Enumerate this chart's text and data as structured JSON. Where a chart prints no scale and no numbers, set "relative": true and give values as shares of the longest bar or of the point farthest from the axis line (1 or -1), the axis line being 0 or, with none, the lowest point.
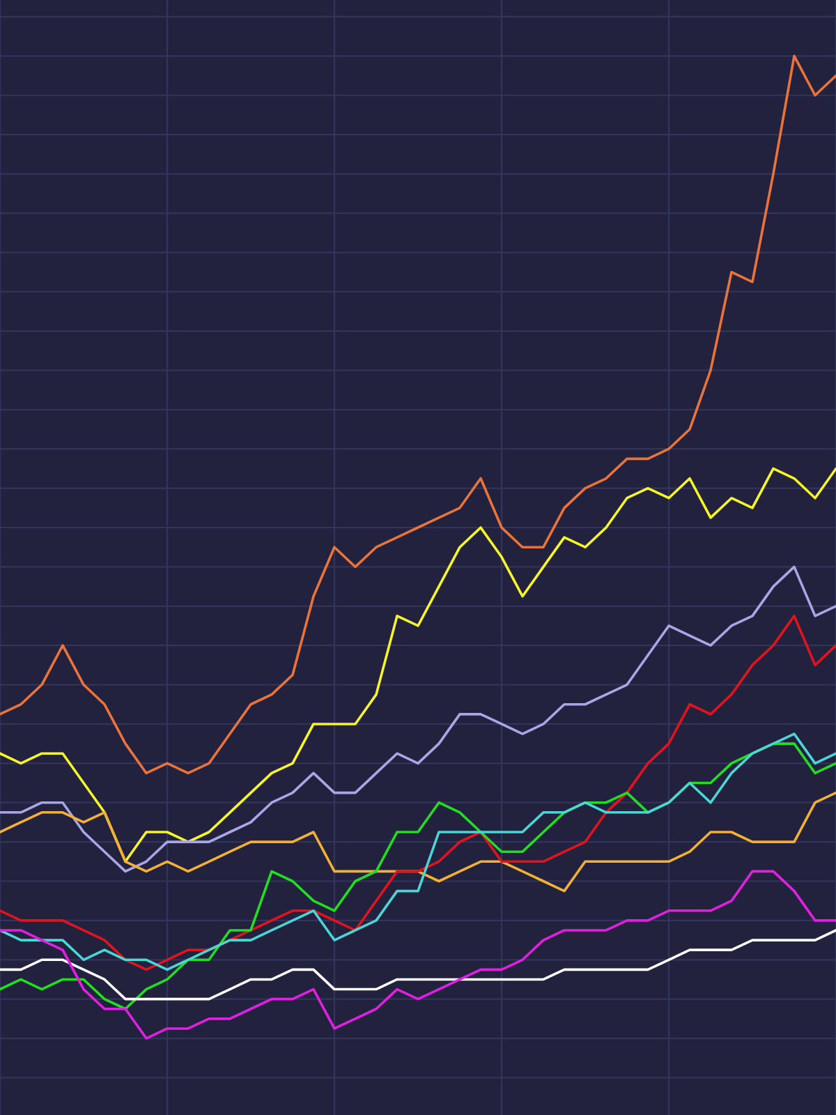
{
  "chart_data": {
    "type": "line",
    "relative": true,
    "grid": true,
    "marker": "none",
    "line_style": "solid",
    "categories": [
      null,
      null,
      null,
      null,
      null,
      null,
      null,
      null,
      null,
      null,
      null,
      null,
      null,
      null,
      null,
      null,
      null,
      null,
      null,
      null,
      null,
      null,
      null,
      null,
      null,
      null,
      null,
      null,
      null,
      null,
      null,
      null,
      null,
      null,
      null,
      null,
      null,
      null,
      null,
      null,
      null
    ],
    "series": [
      {
        "color": "#e8743b",
        "values": [
          0.33,
          0.34,
          0.36,
          0.4,
          0.36,
          0.34,
          0.3,
          0.27,
          0.28,
          0.27,
          0.28,
          0.31,
          0.34,
          0.35,
          0.37,
          0.45,
          0.5,
          0.48,
          0.5,
          0.51,
          0.52,
          0.53,
          0.54,
          0.57,
          0.52,
          0.5,
          0.5,
          0.54,
          0.56,
          0.57,
          0.59,
          0.59,
          0.6,
          0.62,
          0.68,
          0.78,
          0.77,
          0.88,
          1.0,
          0.96,
          0.98
        ]
      },
      {
        "color": "#f5f52a",
        "values": [
          0.29,
          0.28,
          0.29,
          0.29,
          0.26,
          0.23,
          0.18,
          0.21,
          0.21,
          0.2,
          0.21,
          0.23,
          0.25,
          0.27,
          0.28,
          0.32,
          0.32,
          0.32,
          0.35,
          0.43,
          0.42,
          0.46,
          0.5,
          0.52,
          0.49,
          0.45,
          0.48,
          0.51,
          0.5,
          0.52,
          0.55,
          0.56,
          0.55,
          0.57,
          0.53,
          0.55,
          0.54,
          0.58,
          0.57,
          0.55,
          0.58
        ]
      },
      {
        "color": "#a9a6e6",
        "values": [
          0.23,
          0.23,
          0.24,
          0.24,
          0.21,
          0.19,
          0.17,
          0.18,
          0.2,
          0.2,
          0.2,
          0.21,
          0.22,
          0.24,
          0.25,
          0.27,
          0.25,
          0.25,
          0.27,
          0.29,
          0.28,
          0.3,
          0.33,
          0.33,
          0.32,
          0.31,
          0.32,
          0.34,
          0.34,
          0.35,
          0.36,
          0.39,
          0.42,
          0.41,
          0.4,
          0.42,
          0.43,
          0.46,
          0.48,
          0.43,
          0.44
        ]
      },
      {
        "color": "#f2b134",
        "values": [
          0.21,
          0.22,
          0.23,
          0.23,
          0.22,
          0.23,
          0.18,
          0.17,
          0.18,
          0.17,
          0.18,
          0.19,
          0.2,
          0.2,
          0.2,
          0.21,
          0.17,
          0.17,
          0.17,
          0.17,
          0.17,
          0.16,
          0.17,
          0.18,
          0.18,
          0.17,
          0.16,
          0.15,
          0.18,
          0.18,
          0.18,
          0.18,
          0.18,
          0.19,
          0.21,
          0.21,
          0.2,
          0.2,
          0.2,
          0.24,
          0.25
        ]
      },
      {
        "color": "#e0141e",
        "values": [
          0.13,
          0.12,
          0.12,
          0.12,
          0.11,
          0.1,
          0.08,
          0.07,
          0.08,
          0.09,
          0.09,
          0.1,
          0.11,
          0.12,
          0.13,
          0.13,
          0.12,
          0.11,
          0.14,
          0.17,
          0.17,
          0.18,
          0.2,
          0.21,
          0.18,
          0.18,
          0.18,
          0.19,
          0.2,
          0.23,
          0.25,
          0.28,
          0.3,
          0.34,
          0.33,
          0.35,
          0.38,
          0.4,
          0.43,
          0.38,
          0.4
        ]
      },
      {
        "color": "#22dd22",
        "values": [
          0.05,
          0.06,
          0.05,
          0.06,
          0.06,
          0.04,
          0.03,
          0.05,
          0.06,
          0.08,
          0.08,
          0.11,
          0.11,
          0.17,
          0.16,
          0.14,
          0.13,
          0.16,
          0.17,
          0.21,
          0.21,
          0.24,
          0.23,
          0.21,
          0.19,
          0.19,
          0.21,
          0.23,
          0.24,
          0.24,
          0.25,
          0.23,
          0.24,
          0.26,
          0.26,
          0.28,
          0.29,
          0.3,
          0.3,
          0.27,
          0.28
        ]
      },
      {
        "color": "#4dd4d4",
        "values": [
          0.11,
          0.1,
          0.1,
          0.1,
          0.08,
          0.09,
          0.08,
          0.08,
          0.07,
          0.08,
          0.09,
          0.1,
          0.1,
          0.11,
          0.12,
          0.13,
          0.1,
          0.11,
          0.12,
          0.15,
          0.15,
          0.21,
          0.21,
          0.21,
          0.21,
          0.21,
          0.23,
          0.23,
          0.24,
          0.23,
          0.23,
          0.23,
          0.24,
          0.26,
          0.24,
          0.27,
          0.29,
          0.3,
          0.31,
          0.28,
          0.29
        ]
      },
      {
        "color": "#ffffff",
        "values": [
          0.07,
          0.07,
          0.08,
          0.08,
          0.07,
          0.06,
          0.04,
          0.04,
          0.04,
          0.04,
          0.04,
          0.05,
          0.06,
          0.06,
          0.07,
          0.07,
          0.05,
          0.05,
          0.05,
          0.06,
          0.06,
          0.06,
          0.06,
          0.06,
          0.06,
          0.06,
          0.06,
          0.07,
          0.07,
          0.07,
          0.07,
          0.07,
          0.08,
          0.09,
          0.09,
          0.09,
          0.1,
          0.1,
          0.1,
          0.1,
          0.11
        ]
      },
      {
        "color": "#e020e0",
        "values": [
          0.11,
          0.11,
          0.1,
          0.09,
          0.05,
          0.03,
          0.03,
          0.0,
          0.01,
          0.01,
          0.02,
          0.02,
          0.03,
          0.04,
          0.04,
          0.05,
          0.01,
          0.02,
          0.03,
          0.05,
          0.04,
          0.05,
          0.06,
          0.07,
          0.07,
          0.08,
          0.1,
          0.11,
          0.11,
          0.11,
          0.12,
          0.12,
          0.13,
          0.13,
          0.13,
          0.14,
          0.17,
          0.17,
          0.15,
          0.12,
          0.12
        ]
      }
    ]
  }
}
